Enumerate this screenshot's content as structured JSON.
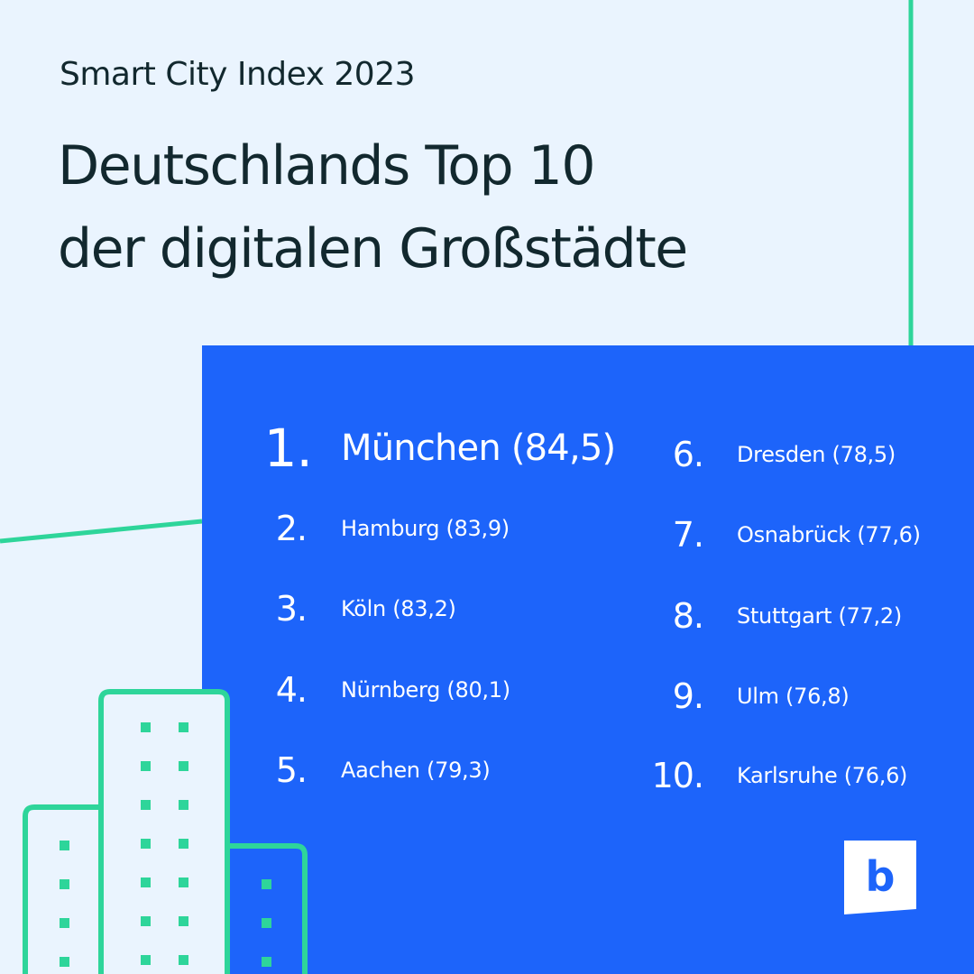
{
  "header": {
    "subtitle": "Smart City Index 2023",
    "headline_line1": "Deutschlands Top 10",
    "headline_line2": "der digitalen Großstädte"
  },
  "ranking": [
    {
      "rank": "1.",
      "city": "München (84,5)"
    },
    {
      "rank": "2.",
      "city": "Hamburg (83,9)"
    },
    {
      "rank": "3.",
      "city": "Köln (83,2)"
    },
    {
      "rank": "4.",
      "city": "Nürnberg (80,1)"
    },
    {
      "rank": "5.",
      "city": "Aachen (79,3)"
    },
    {
      "rank": "6.",
      "city": "Dresden (78,5)"
    },
    {
      "rank": "7.",
      "city": "Osnabrück (77,6)"
    },
    {
      "rank": "8.",
      "city": "Stuttgart (77,2)"
    },
    {
      "rank": "9.",
      "city": "Ulm (76,8)"
    },
    {
      "rank": "10.",
      "city": "Karlsruhe (76,6)"
    }
  ],
  "logo": {
    "letter": "b"
  },
  "colors": {
    "background": "#eaf4fe",
    "panel": "#1d64fa",
    "accent_green": "#2ed59a",
    "text_dark": "#12282e"
  }
}
